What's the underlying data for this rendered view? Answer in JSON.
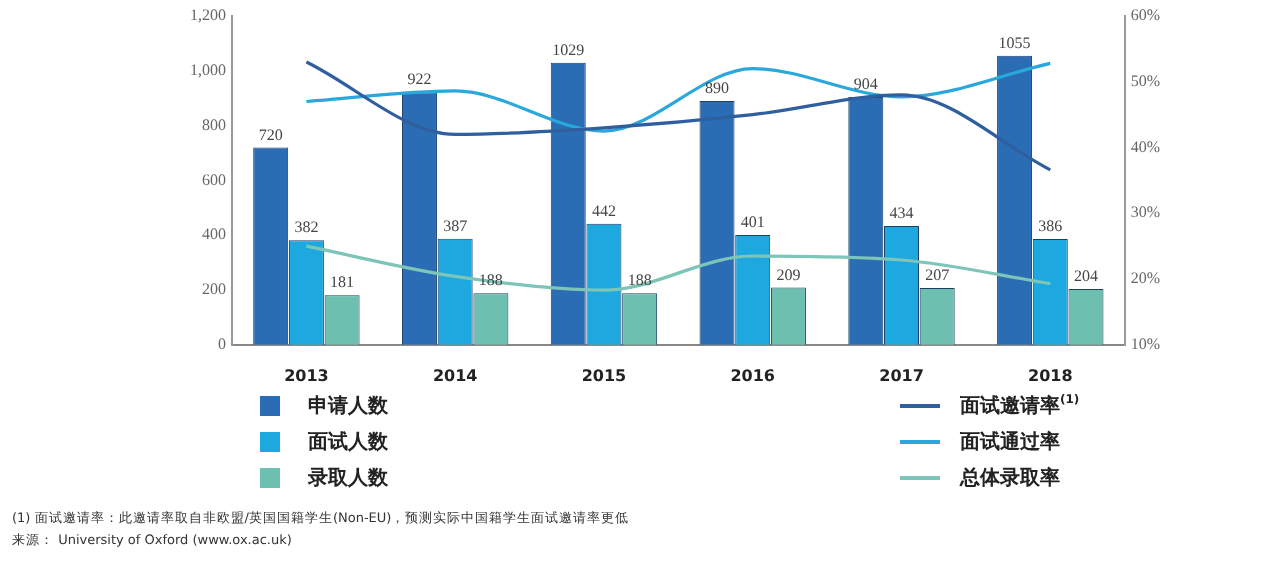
{
  "chart_data": {
    "type": "bar",
    "categories": [
      "2013",
      "2014",
      "2015",
      "2016",
      "2017",
      "2018"
    ],
    "series": [
      {
        "name": "申请人数",
        "color": "#2a6db5",
        "values": [
          720,
          922,
          1029,
          890,
          904,
          1055
        ],
        "value_labels": [
          "720",
          "922",
          "1029",
          "890",
          "904",
          "1055"
        ]
      },
      {
        "name": "面试人数",
        "color": "#1ea8e0",
        "values": [
          382,
          387,
          442,
          401,
          434,
          386
        ],
        "value_labels": [
          "382",
          "387",
          "442",
          "401",
          "434",
          "386"
        ]
      },
      {
        "name": "录取人数",
        "color": "#6dbfb0",
        "values": [
          181,
          188,
          188,
          209,
          207,
          204
        ],
        "value_labels": [
          "181",
          "188",
          "188",
          "209",
          "207",
          "204"
        ]
      },
      {
        "name": "面试邀请率$^{(1)}$",
        "type": "line",
        "axis": "y2",
        "color": "#2f5f9e",
        "values": [
          53,
          42,
          43,
          45,
          48,
          36.6
        ]
      },
      {
        "name": "面试通过率",
        "type": "line",
        "axis": "y2",
        "color": "#2aa8dc",
        "values": [
          47,
          48.6,
          42.5,
          52,
          47.7,
          52.8
        ]
      },
      {
        "name": "总体录取率",
        "type": "line",
        "axis": "y2",
        "color": "#7cc5b8",
        "values": [
          25,
          20.4,
          18.3,
          23.5,
          22.9,
          19.3
        ]
      }
    ],
    "ylim": [
      0,
      1200
    ],
    "yticks": [
      0,
      200,
      400,
      600,
      800,
      {
        "value": 1000,
        "label": "1,000"
      },
      {
        "value": 1200,
        "label": "1,200"
      }
    ],
    "y2lim": [
      10,
      60
    ],
    "y2ticks": [
      {
        "value": 10,
        "label": "10%"
      },
      {
        "value": 20,
        "label": "20%"
      },
      {
        "value": 30,
        "label": "30%"
      },
      {
        "value": 40,
        "label": "40%"
      },
      {
        "value": 50,
        "label": "50%"
      },
      {
        "value": 60,
        "label": "60%"
      }
    ],
    "grid": false,
    "legend": "bottom",
    "marker": "none",
    "annotations": [
      "(1) 面试邀请率：此邀请率取自非欧盟/英国国籍学生(Non-EU)，预测实际中国籍学生面试邀请率更低",
      "来源： University of Oxford (www.ox.ac.uk)"
    ]
  }
}
